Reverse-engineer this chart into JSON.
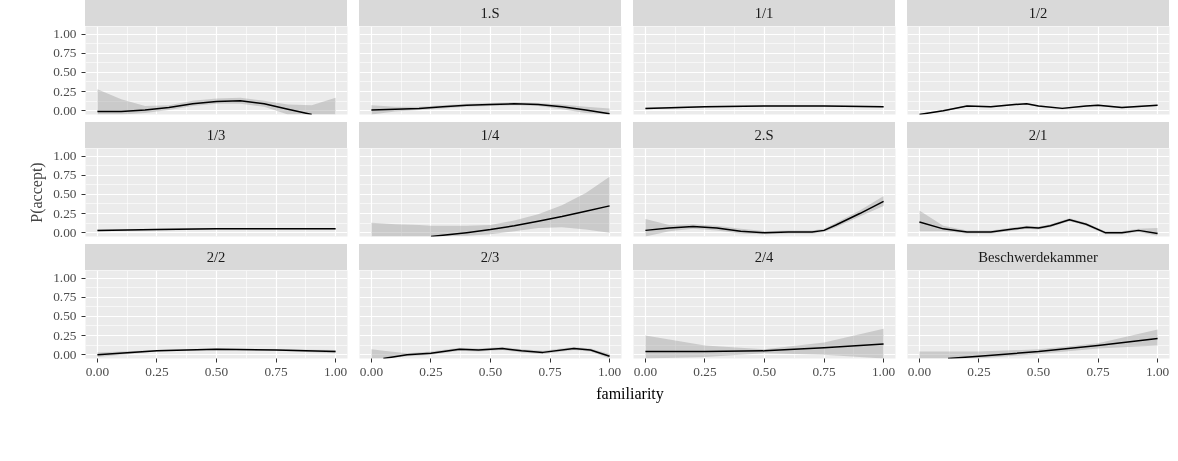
{
  "chart_data": [
    {
      "type": "line",
      "x": [
        0,
        0.1,
        0.2,
        0.3,
        0.4,
        0.5,
        0.6,
        0.7,
        0.8,
        0.9,
        1.0
      ],
      "series": [
        {
          "color": "#000000",
          "values": [
            -0.01,
            -0.01,
            0.01,
            0.04,
            0.09,
            0.12,
            0.13,
            0.09,
            0.02,
            -0.05,
            null
          ],
          "lower": [
            -0.05,
            -0.05,
            -0.03,
            0.01,
            0.06,
            0.09,
            0.09,
            0.05,
            -0.05,
            -0.05,
            -0.05
          ],
          "upper": [
            0.28,
            0.15,
            0.06,
            0.07,
            0.13,
            0.16,
            0.17,
            0.13,
            0.08,
            0.07,
            0.17
          ]
        }
      ],
      "xlim": [
        -0.05,
        1.05
      ],
      "ylim": [
        -0.05,
        1.1
      ],
      "xticks": [
        0,
        0.25,
        0.5,
        0.75,
        1
      ],
      "yticks": [
        {
          "value": 0,
          "label": "0.00"
        },
        {
          "value": 0.25,
          "label": "0.25"
        },
        {
          "value": 0.5,
          "label": "0.50"
        },
        {
          "value": 0.75,
          "label": "0.75"
        },
        {
          "value": 1,
          "label": "1.00"
        }
      ],
      "grid": true,
      "tick_labels": "y"
    },
    {
      "type": "line",
      "title": "1.S",
      "x": [
        0,
        0.1,
        0.2,
        0.3,
        0.4,
        0.5,
        0.6,
        0.7,
        0.8,
        0.9,
        1.0
      ],
      "series": [
        {
          "color": "#000000",
          "values": [
            0.01,
            0.02,
            0.03,
            0.05,
            0.07,
            0.08,
            0.09,
            0.08,
            0.05,
            0.01,
            -0.04
          ],
          "lower": [
            -0.05,
            -0.01,
            0.01,
            0.03,
            0.05,
            0.06,
            0.07,
            0.06,
            0.02,
            -0.03,
            -0.05
          ],
          "upper": [
            0.07,
            0.05,
            0.05,
            0.07,
            0.09,
            0.1,
            0.11,
            0.1,
            0.08,
            0.05,
            0.03
          ]
        }
      ],
      "xlim": [
        -0.05,
        1.05
      ],
      "ylim": [
        -0.05,
        1.1
      ],
      "xticks": [
        0,
        0.25,
        0.5,
        0.75,
        1
      ],
      "yticks": [
        0,
        0.25,
        0.5,
        0.75,
        1
      ],
      "grid": true,
      "tick_labels": false
    },
    {
      "type": "line",
      "title": "1/1",
      "x": [
        0,
        0.25,
        0.5,
        0.75,
        1.0
      ],
      "series": [
        {
          "color": "#000000",
          "values": [
            0.03,
            0.05,
            0.06,
            0.06,
            0.05
          ],
          "lower": [
            0.02,
            0.04,
            0.05,
            0.05,
            0.04
          ],
          "upper": [
            0.04,
            0.06,
            0.07,
            0.07,
            0.06
          ]
        }
      ],
      "xlim": [
        -0.05,
        1.05
      ],
      "ylim": [
        -0.05,
        1.1
      ],
      "xticks": [
        0,
        0.25,
        0.5,
        0.75,
        1
      ],
      "yticks": [
        0,
        0.25,
        0.5,
        0.75,
        1
      ],
      "grid": true,
      "tick_labels": false
    },
    {
      "type": "line",
      "title": "1/2",
      "x": [
        0,
        0.1,
        0.2,
        0.3,
        0.4,
        0.45,
        0.5,
        0.6,
        0.7,
        0.75,
        0.85,
        1.0
      ],
      "series": [
        {
          "color": "#000000",
          "values": [
            -0.05,
            0.0,
            0.06,
            0.05,
            0.08,
            0.09,
            0.06,
            0.03,
            0.06,
            0.07,
            0.04,
            0.07
          ],
          "lower": [
            -0.05,
            -0.01,
            0.05,
            0.04,
            0.07,
            0.08,
            0.05,
            0.02,
            0.05,
            0.06,
            0.03,
            0.06
          ],
          "upper": [
            -0.04,
            0.01,
            0.07,
            0.06,
            0.09,
            0.1,
            0.07,
            0.04,
            0.07,
            0.08,
            0.05,
            0.08
          ]
        }
      ],
      "xlim": [
        -0.05,
        1.05
      ],
      "ylim": [
        -0.05,
        1.1
      ],
      "xticks": [
        0,
        0.25,
        0.5,
        0.75,
        1
      ],
      "yticks": [
        0,
        0.25,
        0.5,
        0.75,
        1
      ],
      "grid": true,
      "tick_labels": false
    },
    {
      "type": "line",
      "title": "1/3",
      "ylabel": "P(accept)",
      "x": [
        0,
        0.25,
        0.5,
        0.75,
        1.0
      ],
      "series": [
        {
          "color": "#000000",
          "values": [
            0.03,
            0.04,
            0.05,
            0.05,
            0.05
          ],
          "lower": [
            0.02,
            0.03,
            0.04,
            0.04,
            0.04
          ],
          "upper": [
            0.04,
            0.05,
            0.06,
            0.06,
            0.06
          ]
        }
      ],
      "xlim": [
        -0.05,
        1.05
      ],
      "ylim": [
        -0.05,
        1.1
      ],
      "xticks": [
        0,
        0.25,
        0.5,
        0.75,
        1
      ],
      "yticks": [
        {
          "value": 0,
          "label": "0.00"
        },
        {
          "value": 0.25,
          "label": "0.25"
        },
        {
          "value": 0.5,
          "label": "0.50"
        },
        {
          "value": 0.75,
          "label": "0.75"
        },
        {
          "value": 1,
          "label": "1.00"
        }
      ],
      "grid": true,
      "tick_labels": "y"
    },
    {
      "type": "line",
      "title": "1/4",
      "x": [
        0,
        0.1,
        0.2,
        0.25,
        0.4,
        0.5,
        0.6,
        0.7,
        0.8,
        0.9,
        1.0
      ],
      "series": [
        {
          "color": "#000000",
          "values": [
            null,
            null,
            null,
            -0.05,
            0.0,
            0.04,
            0.09,
            0.15,
            0.21,
            0.28,
            0.35
          ],
          "lower": [
            -0.05,
            -0.05,
            -0.05,
            -0.05,
            -0.04,
            -0.02,
            0.02,
            0.06,
            0.07,
            0.04,
            0.0
          ],
          "upper": [
            0.13,
            0.11,
            0.1,
            0.09,
            0.09,
            0.1,
            0.16,
            0.24,
            0.36,
            0.52,
            0.73
          ]
        }
      ],
      "xlim": [
        -0.05,
        1.05
      ],
      "ylim": [
        -0.05,
        1.1
      ],
      "xticks": [
        0,
        0.25,
        0.5,
        0.75,
        1
      ],
      "yticks": [
        0,
        0.25,
        0.5,
        0.75,
        1
      ],
      "grid": true,
      "tick_labels": false
    },
    {
      "type": "line",
      "title": "2.S",
      "x": [
        0,
        0.1,
        0.2,
        0.3,
        0.4,
        0.5,
        0.6,
        0.7,
        0.75,
        0.8,
        0.9,
        1.0
      ],
      "series": [
        {
          "color": "#000000",
          "values": [
            0.03,
            0.06,
            0.08,
            0.06,
            0.02,
            0.0,
            0.01,
            0.01,
            0.03,
            0.1,
            0.25,
            0.41
          ],
          "lower": [
            -0.05,
            0.02,
            0.05,
            0.03,
            -0.01,
            -0.02,
            -0.01,
            -0.01,
            0.01,
            0.07,
            0.21,
            0.35
          ],
          "upper": [
            0.18,
            0.1,
            0.11,
            0.09,
            0.05,
            0.02,
            0.03,
            0.03,
            0.05,
            0.13,
            0.29,
            0.48
          ]
        }
      ],
      "xlim": [
        -0.05,
        1.05
      ],
      "ylim": [
        -0.05,
        1.1
      ],
      "xticks": [
        0,
        0.25,
        0.5,
        0.75,
        1
      ],
      "yticks": [
        0,
        0.25,
        0.5,
        0.75,
        1
      ],
      "grid": true,
      "tick_labels": false
    },
    {
      "type": "line",
      "title": "2/1",
      "x": [
        0,
        0.1,
        0.2,
        0.3,
        0.4,
        0.45,
        0.5,
        0.55,
        0.63,
        0.7,
        0.78,
        0.85,
        0.92,
        1.0
      ],
      "series": [
        {
          "color": "#000000",
          "values": [
            0.14,
            0.05,
            0.01,
            0.01,
            0.05,
            0.07,
            0.06,
            0.09,
            0.17,
            0.11,
            0.0,
            0.0,
            0.03,
            -0.01
          ],
          "lower": [
            0.02,
            0.02,
            -0.01,
            -0.01,
            0.03,
            0.05,
            0.04,
            0.07,
            0.15,
            0.09,
            -0.02,
            -0.02,
            0.01,
            -0.04
          ],
          "upper": [
            0.29,
            0.09,
            0.03,
            0.03,
            0.07,
            0.09,
            0.08,
            0.11,
            0.19,
            0.13,
            0.02,
            0.02,
            0.05,
            0.06
          ]
        }
      ],
      "xlim": [
        -0.05,
        1.05
      ],
      "ylim": [
        -0.05,
        1.1
      ],
      "xticks": [
        0,
        0.25,
        0.5,
        0.75,
        1
      ],
      "yticks": [
        0,
        0.25,
        0.5,
        0.75,
        1
      ],
      "grid": true,
      "tick_labels": false
    },
    {
      "type": "line",
      "title": "2/2",
      "x": [
        0,
        0.25,
        0.5,
        0.75,
        1.0
      ],
      "series": [
        {
          "color": "#000000",
          "values": [
            0.0,
            0.05,
            0.07,
            0.06,
            0.04
          ],
          "lower": [
            -0.03,
            0.04,
            0.06,
            0.05,
            0.02
          ],
          "upper": [
            0.03,
            0.06,
            0.08,
            0.07,
            0.06
          ]
        }
      ],
      "xlim": [
        -0.05,
        1.05
      ],
      "ylim": [
        -0.05,
        1.1
      ],
      "xticks": [
        {
          "value": 0,
          "label": "0.00"
        },
        {
          "value": 0.25,
          "label": "0.25"
        },
        {
          "value": 0.5,
          "label": "0.50"
        },
        {
          "value": 0.75,
          "label": "0.75"
        },
        {
          "value": 1,
          "label": "1.00"
        }
      ],
      "yticks": [
        {
          "value": 0,
          "label": "0.00"
        },
        {
          "value": 0.25,
          "label": "0.25"
        },
        {
          "value": 0.5,
          "label": "0.50"
        },
        {
          "value": 0.75,
          "label": "0.75"
        },
        {
          "value": 1,
          "label": "1.00"
        }
      ],
      "grid": true
    },
    {
      "type": "line",
      "title": "2/3",
      "x": [
        0,
        0.05,
        0.15,
        0.25,
        0.37,
        0.45,
        0.55,
        0.63,
        0.72,
        0.85,
        0.92,
        1.0
      ],
      "series": [
        {
          "color": "#000000",
          "values": [
            null,
            -0.05,
            0.0,
            0.02,
            0.07,
            0.06,
            0.08,
            0.05,
            0.03,
            0.08,
            0.06,
            -0.02
          ],
          "lower": [
            -0.05,
            -0.05,
            -0.02,
            0.0,
            0.05,
            0.04,
            0.06,
            0.03,
            0.01,
            0.06,
            0.04,
            -0.05
          ],
          "upper": [
            0.07,
            0.05,
            0.02,
            0.04,
            0.09,
            0.08,
            0.1,
            0.07,
            0.05,
            0.1,
            0.08,
            0.01
          ]
        }
      ],
      "xlim": [
        -0.05,
        1.05
      ],
      "ylim": [
        -0.05,
        1.1
      ],
      "xticks": [
        {
          "value": 0,
          "label": "0.00"
        },
        {
          "value": 0.25,
          "label": "0.25"
        },
        {
          "value": 0.5,
          "label": "0.50"
        },
        {
          "value": 0.75,
          "label": "0.75"
        },
        {
          "value": 1,
          "label": "1.00"
        }
      ],
      "yticks": [
        0,
        0.25,
        0.5,
        0.75,
        1
      ],
      "grid": true,
      "tick_labels": "x",
      "xlabel": "familiarity"
    },
    {
      "type": "line",
      "title": "2/4",
      "x": [
        0,
        0.25,
        0.5,
        0.75,
        1.0
      ],
      "series": [
        {
          "color": "#000000",
          "values": [
            0.04,
            0.04,
            0.05,
            0.09,
            0.14
          ],
          "lower": [
            -0.05,
            -0.03,
            0.02,
            0.0,
            -0.05
          ],
          "upper": [
            0.25,
            0.12,
            0.07,
            0.16,
            0.34
          ]
        }
      ],
      "xlim": [
        -0.05,
        1.05
      ],
      "ylim": [
        -0.05,
        1.1
      ],
      "xticks": [
        {
          "value": 0,
          "label": "0.00"
        },
        {
          "value": 0.25,
          "label": "0.25"
        },
        {
          "value": 0.5,
          "label": "0.50"
        },
        {
          "value": 0.75,
          "label": "0.75"
        },
        {
          "value": 1,
          "label": "1.00"
        }
      ],
      "yticks": [
        0,
        0.25,
        0.5,
        0.75,
        1
      ],
      "grid": true,
      "tick_labels": "x"
    },
    {
      "type": "line",
      "title": "Beschwerdekammer",
      "x": [
        0,
        0.12,
        0.25,
        0.5,
        0.75,
        1.0
      ],
      "series": [
        {
          "color": "#000000",
          "values": [
            null,
            -0.05,
            -0.02,
            0.04,
            0.12,
            0.21
          ],
          "lower": [
            -0.05,
            -0.05,
            -0.05,
            0.01,
            0.08,
            0.12
          ],
          "upper": [
            0.04,
            0.04,
            0.04,
            0.07,
            0.15,
            0.33
          ]
        }
      ],
      "xlim": [
        -0.05,
        1.05
      ],
      "ylim": [
        -0.05,
        1.1
      ],
      "xticks": [
        {
          "value": 0,
          "label": "0.00"
        },
        {
          "value": 0.25,
          "label": "0.25"
        },
        {
          "value": 0.5,
          "label": "0.50"
        },
        {
          "value": 0.75,
          "label": "0.75"
        },
        {
          "value": 1,
          "label": "1.00"
        }
      ],
      "yticks": [
        0,
        0.25,
        0.5,
        0.75,
        1
      ],
      "grid": true,
      "tick_labels": "x"
    }
  ]
}
